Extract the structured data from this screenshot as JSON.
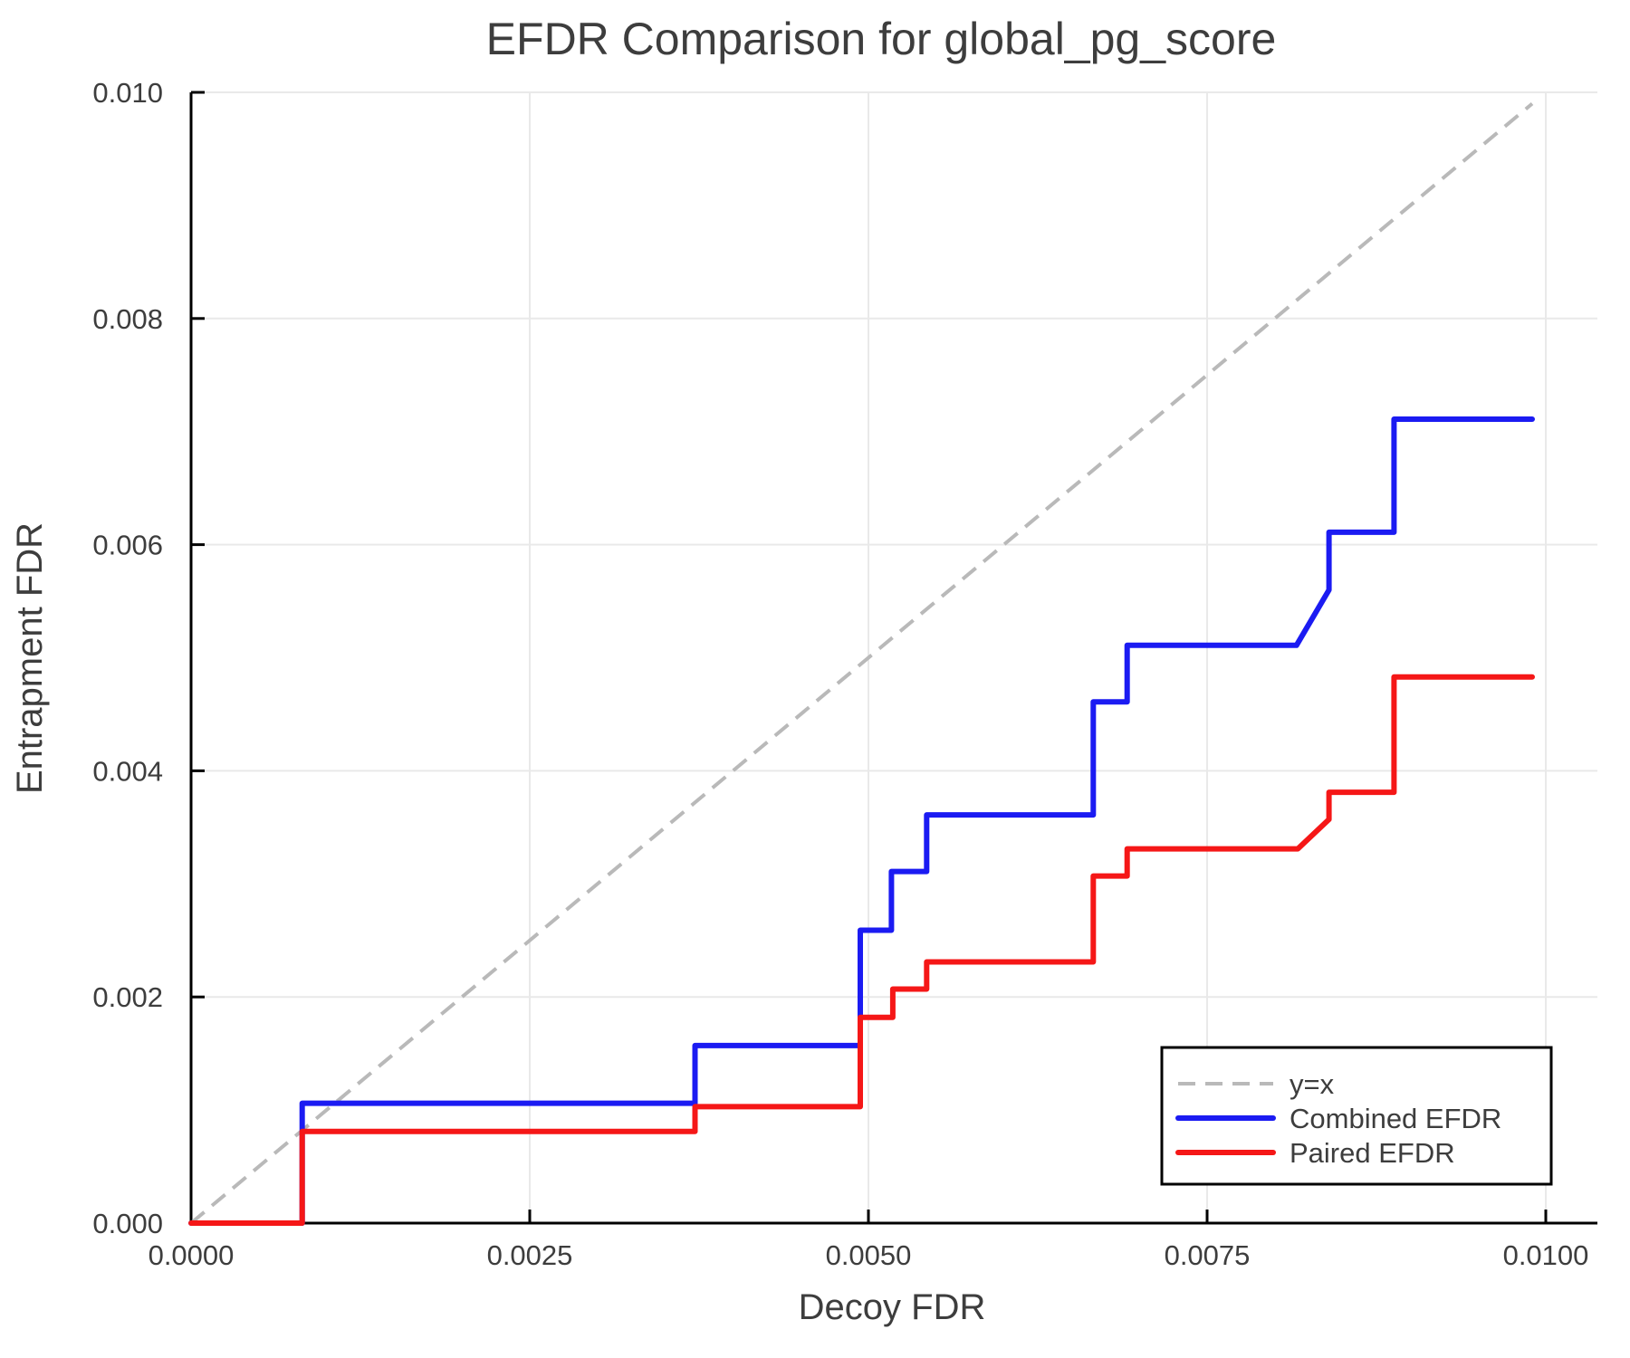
{
  "chart_data": {
    "type": "line",
    "title": "EFDR Comparison for global_pg_score",
    "xlabel": "Decoy FDR",
    "ylabel": "Entrapment FDR",
    "xlim": [
      0,
      0.010383
    ],
    "ylim": [
      0,
      0.01
    ],
    "grid": true,
    "legend_position": "bottom-right",
    "colors": {
      "text": "#3d3d3d",
      "grid": "#e9e9e9",
      "axis": "#000000",
      "legend_border": "#000000",
      "legend_background": "#ffffff"
    },
    "xticks": {
      "values": [
        0.0,
        0.0025,
        0.005,
        0.0075,
        0.01
      ],
      "labels": [
        "0.0000",
        "0.0025",
        "0.0050",
        "0.0075",
        "0.0100"
      ]
    },
    "yticks": {
      "values": [
        0.0,
        0.002,
        0.004,
        0.006,
        0.008,
        0.01
      ],
      "labels": [
        "0.000",
        "0.002",
        "0.004",
        "0.006",
        "0.008",
        "0.010"
      ]
    },
    "series": [
      {
        "name": "y=x",
        "style": "dashed",
        "color": "#b9b9b9",
        "width": 4,
        "points": [
          [
            0.0,
            0.0
          ],
          [
            0.0099,
            0.0099
          ]
        ]
      },
      {
        "name": "Combined EFDR",
        "style": "solid",
        "color": "#1b1bf2",
        "width": 6,
        "points": [
          [
            0.0,
            0.0
          ],
          [
            0.00082,
            0.0
          ],
          [
            0.00082,
            0.00106
          ],
          [
            0.00372,
            0.00106
          ],
          [
            0.00372,
            0.00157
          ],
          [
            0.00494,
            0.00157
          ],
          [
            0.00494,
            0.00259
          ],
          [
            0.00517,
            0.00259
          ],
          [
            0.00517,
            0.00311
          ],
          [
            0.00543,
            0.00311
          ],
          [
            0.00543,
            0.00361
          ],
          [
            0.00666,
            0.00361
          ],
          [
            0.00666,
            0.00461
          ],
          [
            0.00691,
            0.00461
          ],
          [
            0.00691,
            0.00511
          ],
          [
            0.00816,
            0.00511
          ],
          [
            0.0084,
            0.0056
          ],
          [
            0.0084,
            0.00611
          ],
          [
            0.00888,
            0.00611
          ],
          [
            0.00888,
            0.00711
          ],
          [
            0.0099,
            0.00711
          ]
        ]
      },
      {
        "name": "Paired EFDR",
        "style": "solid",
        "color": "#f51717",
        "width": 6,
        "points": [
          [
            0.0,
            0.0
          ],
          [
            0.00082,
            0.0
          ],
          [
            0.00082,
            0.00081
          ],
          [
            0.00372,
            0.00081
          ],
          [
            0.00372,
            0.00103
          ],
          [
            0.00494,
            0.00103
          ],
          [
            0.00494,
            0.00182
          ],
          [
            0.00518,
            0.00182
          ],
          [
            0.00518,
            0.00207
          ],
          [
            0.00543,
            0.00207
          ],
          [
            0.00543,
            0.00231
          ],
          [
            0.00666,
            0.00231
          ],
          [
            0.00666,
            0.00307
          ],
          [
            0.00691,
            0.00307
          ],
          [
            0.00691,
            0.00331
          ],
          [
            0.00817,
            0.00331
          ],
          [
            0.0084,
            0.00357
          ],
          [
            0.0084,
            0.00381
          ],
          [
            0.00888,
            0.00381
          ],
          [
            0.00888,
            0.00483
          ],
          [
            0.0099,
            0.00483
          ]
        ]
      }
    ]
  }
}
